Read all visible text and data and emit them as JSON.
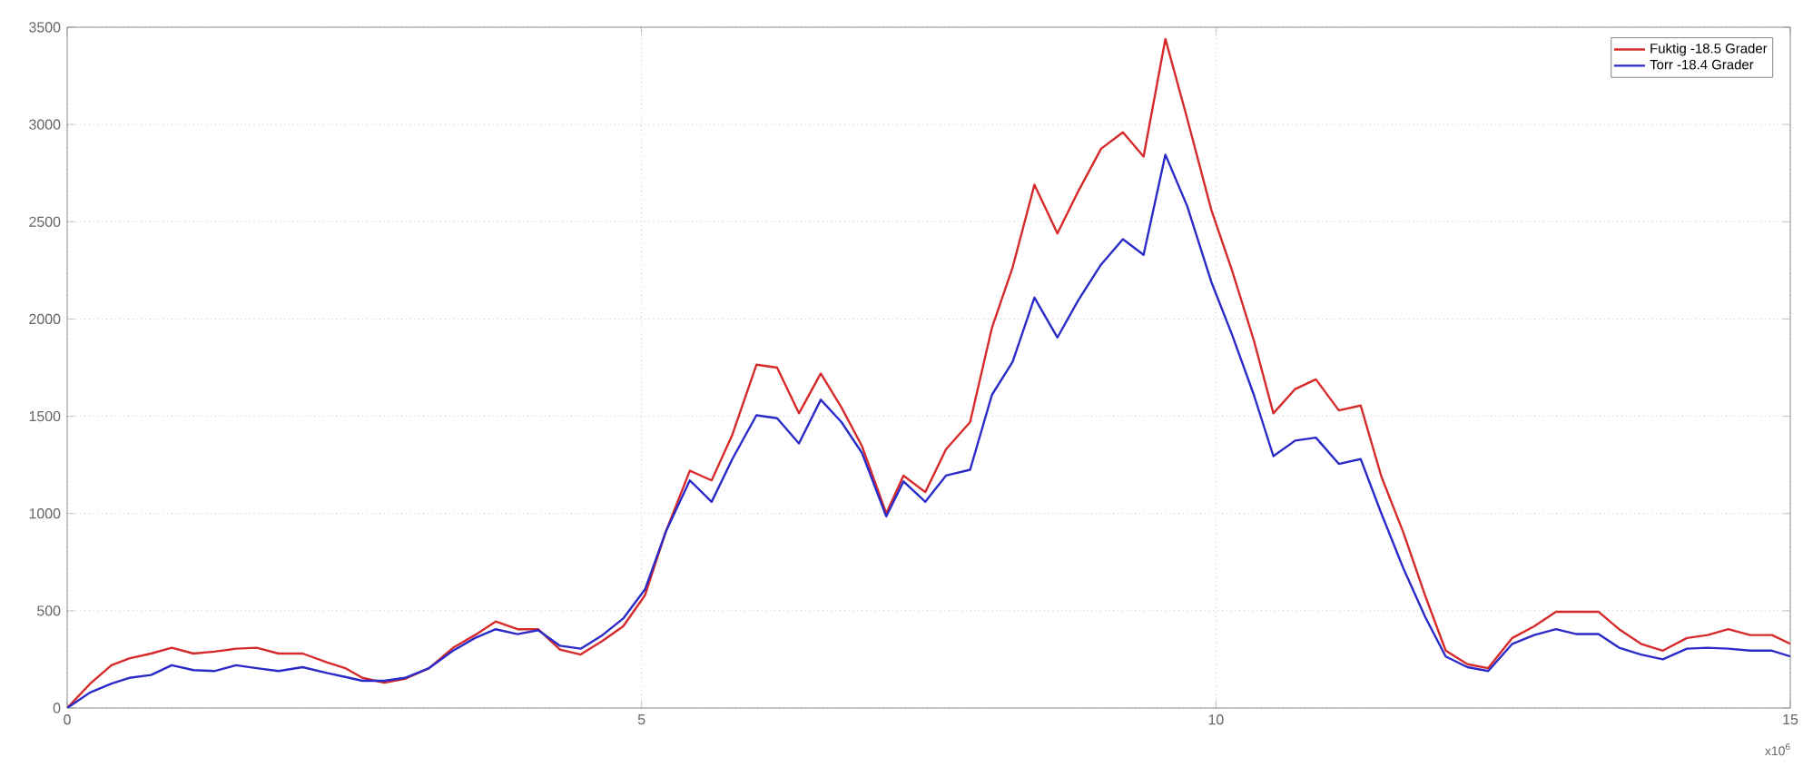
{
  "chart_data": {
    "type": "line",
    "x": [
      0,
      0.2,
      0.385,
      0.54,
      0.73,
      0.91,
      1.1,
      1.28,
      1.47,
      1.65,
      1.84,
      2.05,
      2.26,
      2.42,
      2.57,
      2.76,
      2.94,
      3.15,
      3.36,
      3.55,
      3.73,
      3.92,
      4.1,
      4.29,
      4.47,
      4.66,
      4.84,
      5.03,
      5.21,
      5.42,
      5.61,
      5.79,
      6.0,
      6.18,
      6.37,
      6.56,
      6.74,
      6.92,
      7.13,
      7.28,
      7.47,
      7.65,
      7.86,
      8.05,
      8.23,
      8.42,
      8.62,
      8.8,
      9.0,
      9.19,
      9.37,
      9.56,
      9.75,
      9.96,
      10.14,
      10.33,
      10.5,
      10.69,
      10.87,
      11.07,
      11.26,
      11.44,
      11.63,
      11.82,
      12.0,
      12.19,
      12.37,
      12.58,
      12.77,
      12.96,
      13.14,
      13.33,
      13.51,
      13.7,
      13.89,
      14.1,
      14.28,
      14.46,
      14.65,
      14.84,
      15
    ],
    "series": [
      {
        "name": "Fuktig -18.5 Grader",
        "color": "#d62a2a",
        "values": [
          0,
          125,
          220,
          255,
          280,
          310,
          280,
          290,
          305,
          310,
          280,
          280,
          235,
          205,
          155,
          130,
          150,
          205,
          310,
          375,
          445,
          405,
          405,
          300,
          275,
          345,
          420,
          580,
          905,
          1220,
          1170,
          1405,
          1765,
          1750,
          1515,
          1720,
          1545,
          1345,
          1000,
          1195,
          1110,
          1330,
          1470,
          1955,
          2265,
          2690,
          2440,
          2655,
          2875,
          2960,
          2835,
          3440,
          3030,
          2560,
          2250,
          1890,
          1515,
          1640,
          1690,
          1530,
          1555,
          1190,
          905,
          580,
          295,
          225,
          205,
          360,
          420,
          495,
          495,
          495,
          405,
          330,
          295,
          360,
          375,
          405,
          375,
          375,
          330
        ]
      },
      {
        "name": "Torr -18.4  Grader",
        "color": "#2a2ac8",
        "values": [
          0,
          80,
          125,
          155,
          170,
          220,
          195,
          190,
          220,
          205,
          190,
          210,
          180,
          160,
          140,
          140,
          155,
          205,
          295,
          360,
          405,
          380,
          400,
          320,
          305,
          375,
          460,
          610,
          905,
          1170,
          1060,
          1280,
          1505,
          1490,
          1360,
          1585,
          1470,
          1310,
          985,
          1165,
          1060,
          1195,
          1225,
          1610,
          1780,
          2110,
          1905,
          2095,
          2280,
          2410,
          2330,
          2845,
          2580,
          2190,
          1920,
          1610,
          1295,
          1375,
          1390,
          1255,
          1280,
          1000,
          720,
          470,
          265,
          210,
          190,
          330,
          375,
          405,
          380,
          380,
          310,
          275,
          250,
          305,
          310,
          305,
          295,
          295,
          265
        ]
      }
    ],
    "xlim": [
      0,
      15
    ],
    "ylim": [
      0,
      3500
    ],
    "xticks": [
      0,
      5,
      10,
      15
    ],
    "yticks": [
      0,
      500,
      1000,
      1500,
      2000,
      2500,
      3000,
      3500
    ],
    "grid": true,
    "legend": "top right",
    "line_style": "solid",
    "marker": "none",
    "annotations": [
      "x10$^{6}$"
    ]
  }
}
